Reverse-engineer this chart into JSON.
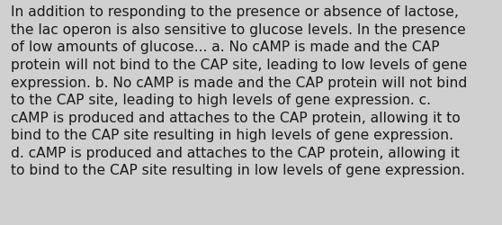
{
  "background_color": "#d0d0d0",
  "text_color": "#1a1a1a",
  "font_size": 11.2,
  "font_family": "DejaVu Sans",
  "lines": [
    "In addition to responding to the presence or absence of lactose,",
    "the lac operon is also sensitive to glucose levels. In the presence",
    "of low amounts of glucose... a. No cAMP is made and the CAP",
    "protein will not bind to the CAP site, leading to low levels of gene",
    "expression. b. No cAMP is made and the CAP protein will not bind",
    "to the CAP site, leading to high levels of gene expression. c.",
    "cAMP is produced and attaches to the CAP protein, allowing it to",
    "bind to the CAP site resulting in high levels of gene expression.",
    "d. cAMP is produced and attaches to the CAP protein, allowing it",
    "to bind to the CAP site resulting in low levels of gene expression."
  ],
  "fig_width": 5.58,
  "fig_height": 2.51,
  "dpi": 100
}
